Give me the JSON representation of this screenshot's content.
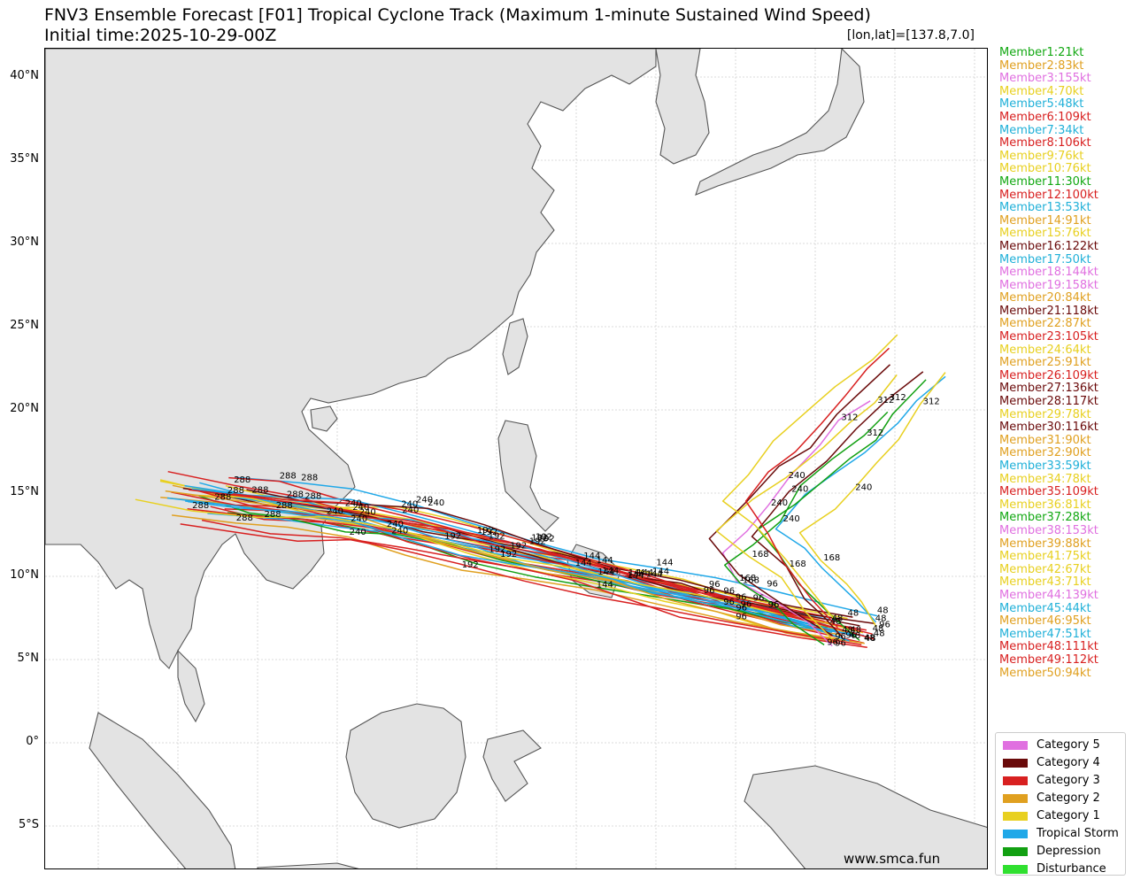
{
  "title": "FNV3 Ensemble Forecast [F01] Tropical Cyclone Track (Maximum 1-minute Sustained Wind Speed)",
  "subtitle": "Initial time:2025-10-29-00Z",
  "lonlat": "[lon,lat]=[137.8,7.0]",
  "watermark": "www.smca.fun",
  "lat_labels": [
    "40°N",
    "35°N",
    "30°N",
    "25°N",
    "20°N",
    "15°N",
    "10°N",
    "5°N",
    "0°",
    "5°S"
  ],
  "members": [
    {
      "label": "Member1:21kt",
      "color": "#12a812"
    },
    {
      "label": "Member2:83kt",
      "color": "#e0a020"
    },
    {
      "label": "Member3:155kt",
      "color": "#e070e0"
    },
    {
      "label": "Member4:70kt",
      "color": "#e8d020"
    },
    {
      "label": "Member5:48kt",
      "color": "#20b0d8"
    },
    {
      "label": "Member6:109kt",
      "color": "#d82020"
    },
    {
      "label": "Member7:34kt",
      "color": "#20b0d8"
    },
    {
      "label": "Member8:106kt",
      "color": "#d82020"
    },
    {
      "label": "Member9:76kt",
      "color": "#e8d020"
    },
    {
      "label": "Member10:76kt",
      "color": "#e8d020"
    },
    {
      "label": "Member11:30kt",
      "color": "#12a812"
    },
    {
      "label": "Member12:100kt",
      "color": "#d82020"
    },
    {
      "label": "Member13:53kt",
      "color": "#20b0d8"
    },
    {
      "label": "Member14:91kt",
      "color": "#e0a020"
    },
    {
      "label": "Member15:76kt",
      "color": "#e8d020"
    },
    {
      "label": "Member16:122kt",
      "color": "#6a0a0a"
    },
    {
      "label": "Member17:50kt",
      "color": "#20b0d8"
    },
    {
      "label": "Member18:144kt",
      "color": "#e070e0"
    },
    {
      "label": "Member19:158kt",
      "color": "#e070e0"
    },
    {
      "label": "Member20:84kt",
      "color": "#e0a020"
    },
    {
      "label": "Member21:118kt",
      "color": "#6a0a0a"
    },
    {
      "label": "Member22:87kt",
      "color": "#e0a020"
    },
    {
      "label": "Member23:105kt",
      "color": "#d82020"
    },
    {
      "label": "Member24:64kt",
      "color": "#e8d020"
    },
    {
      "label": "Member25:91kt",
      "color": "#e0a020"
    },
    {
      "label": "Member26:109kt",
      "color": "#d82020"
    },
    {
      "label": "Member27:136kt",
      "color": "#6a0a0a"
    },
    {
      "label": "Member28:117kt",
      "color": "#6a0a0a"
    },
    {
      "label": "Member29:78kt",
      "color": "#e8d020"
    },
    {
      "label": "Member30:116kt",
      "color": "#6a0a0a"
    },
    {
      "label": "Member31:90kt",
      "color": "#e0a020"
    },
    {
      "label": "Member32:90kt",
      "color": "#e0a020"
    },
    {
      "label": "Member33:59kt",
      "color": "#20b0d8"
    },
    {
      "label": "Member34:78kt",
      "color": "#e8d020"
    },
    {
      "label": "Member35:109kt",
      "color": "#d82020"
    },
    {
      "label": "Member36:81kt",
      "color": "#e8d020"
    },
    {
      "label": "Member37:28kt",
      "color": "#12a812"
    },
    {
      "label": "Member38:153kt",
      "color": "#e070e0"
    },
    {
      "label": "Member39:88kt",
      "color": "#e0a020"
    },
    {
      "label": "Member41:75kt",
      "color": "#e8d020"
    },
    {
      "label": "Member42:67kt",
      "color": "#e8d020"
    },
    {
      "label": "Member43:71kt",
      "color": "#e8d020"
    },
    {
      "label": "Member44:139kt",
      "color": "#e070e0"
    },
    {
      "label": "Member45:44kt",
      "color": "#20b0d8"
    },
    {
      "label": "Member46:95kt",
      "color": "#e0a020"
    },
    {
      "label": "Member47:51kt",
      "color": "#20b0d8"
    },
    {
      "label": "Member48:111kt",
      "color": "#d82020"
    },
    {
      "label": "Member49:112kt",
      "color": "#d82020"
    },
    {
      "label": "Member50:94kt",
      "color": "#e0a020"
    }
  ],
  "legend": [
    {
      "label": "Category 5",
      "color": "#e070e0"
    },
    {
      "label": "Category 4",
      "color": "#6a0a0a"
    },
    {
      "label": "Category 3",
      "color": "#d82020"
    },
    {
      "label": "Category 2",
      "color": "#e0a020"
    },
    {
      "label": "Category 1",
      "color": "#e8d020"
    },
    {
      "label": "Tropical Storm",
      "color": "#20a8e8"
    },
    {
      "label": "Depression",
      "color": "#12a012"
    },
    {
      "label": "Disturbance",
      "color": "#30e030"
    }
  ],
  "hour_labels": [
    "48",
    "72",
    "96",
    "120",
    "144",
    "168",
    "192",
    "216",
    "240",
    "264",
    "288",
    "312"
  ]
}
